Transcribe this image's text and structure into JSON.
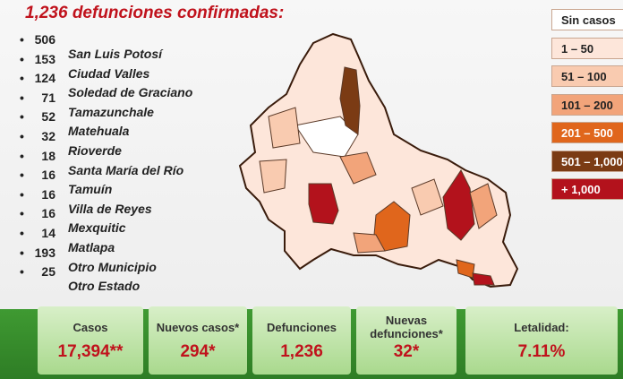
{
  "header": {
    "title": "1,236 defunciones confirmadas:"
  },
  "municipalities": [
    {
      "count": 506,
      "name": "San Luis Potosí"
    },
    {
      "count": 153,
      "name": "Ciudad Valles"
    },
    {
      "count": 124,
      "name": "Soledad de Graciano"
    },
    {
      "count": 71,
      "name": "Tamazunchale"
    },
    {
      "count": 52,
      "name": "Matehuala"
    },
    {
      "count": 32,
      "name": "Rioverde"
    },
    {
      "count": 18,
      "name": "Santa María del Río"
    },
    {
      "count": 16,
      "name": "Tamuín"
    },
    {
      "count": 16,
      "name": "Villa de Reyes"
    },
    {
      "count": 16,
      "name": "Mexquitic"
    },
    {
      "count": 14,
      "name": "Matlapa"
    },
    {
      "count": 193,
      "name": "Otro Municipio"
    },
    {
      "count": 25,
      "name": "Otro Estado"
    }
  ],
  "legend": [
    {
      "label": "Sin casos",
      "color": "#ffffff"
    },
    {
      "label": "1 – 50",
      "color": "#fde6da"
    },
    {
      "label": "51 – 100",
      "color": "#f9cbb0"
    },
    {
      "label": "101 – 200",
      "color": "#f2a47a"
    },
    {
      "label": "201 – 500",
      "color": "#e0661c"
    },
    {
      "label": "501 – 1,000",
      "color": "#7b3b14"
    },
    {
      "label": "+ 1,000",
      "color": "#b3121c"
    }
  ],
  "stats": [
    {
      "label": "Casos",
      "value": "17,394**"
    },
    {
      "label": "Nuevos casos*",
      "value": "294*"
    },
    {
      "label": "Defunciones",
      "value": "1,236"
    },
    {
      "label": "Nuevas defunciones*",
      "value": "32*"
    },
    {
      "label": "Letalidad:",
      "value": "7.11%"
    }
  ]
}
